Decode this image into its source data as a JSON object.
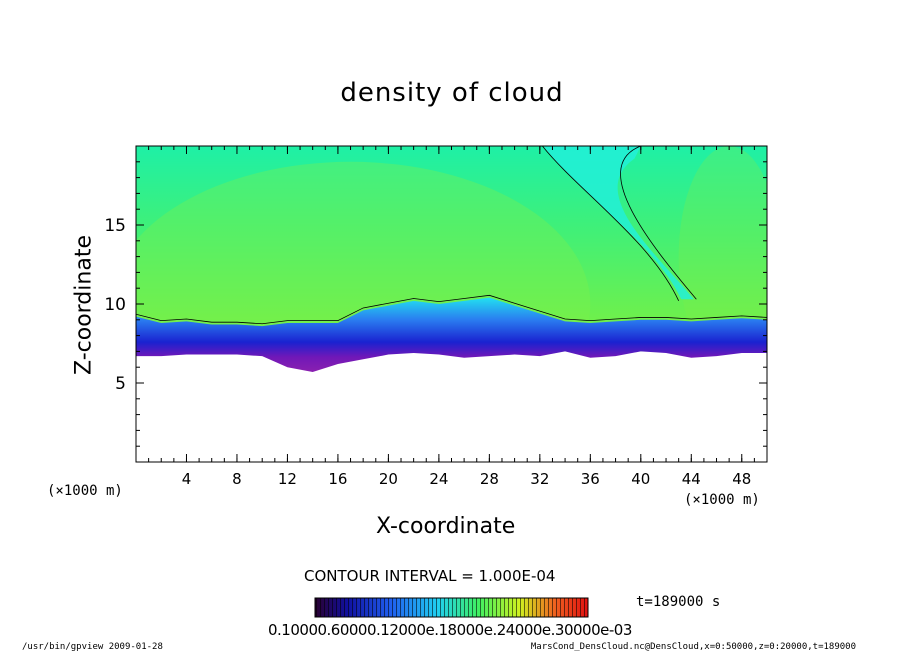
{
  "chart_data": {
    "type": "heatmap",
    "title": "density of cloud",
    "xlabel": "X-coordinate",
    "ylabel": "Z-coordinate",
    "x_unit_label": "(×1000 m)",
    "x_ticks": [
      4,
      8,
      12,
      16,
      20,
      24,
      28,
      32,
      36,
      40,
      44,
      48
    ],
    "y_ticks": [
      5,
      10,
      15
    ],
    "xlim": [
      0,
      50
    ],
    "ylim": [
      0,
      20
    ],
    "contour_interval": "CONTOUR INTERVAL = 1.000E-04",
    "time": "t=189000 s",
    "colorbar_labels": "0.10000.60000.12000e.18000e.24000e.30000e-03",
    "cloud_top_profile": {
      "x": [
        0,
        2,
        4,
        6,
        8,
        10,
        12,
        14,
        16,
        18,
        20,
        22,
        24,
        26,
        28,
        30,
        32,
        34,
        36,
        38,
        40,
        42,
        44,
        46,
        48,
        50
      ],
      "z": [
        9.2,
        8.8,
        8.9,
        8.7,
        8.7,
        8.6,
        8.8,
        8.8,
        8.8,
        9.6,
        9.9,
        10.2,
        10.0,
        10.2,
        10.4,
        9.9,
        9.4,
        8.9,
        8.8,
        8.9,
        9.0,
        9.0,
        8.9,
        9.0,
        9.1,
        9.0
      ]
    },
    "cloud_base_profile": {
      "x": [
        0,
        2,
        4,
        6,
        8,
        10,
        12,
        14,
        16,
        18,
        20,
        22,
        24,
        26,
        28,
        30,
        32,
        34,
        36,
        38,
        40,
        42,
        44,
        46,
        48,
        50
      ],
      "z": [
        6.7,
        6.7,
        6.8,
        6.8,
        6.8,
        6.7,
        6.0,
        5.7,
        6.2,
        6.5,
        6.8,
        6.9,
        6.8,
        6.6,
        6.7,
        6.8,
        6.7,
        7.0,
        6.6,
        6.7,
        7.0,
        6.9,
        6.6,
        6.7,
        6.9,
        6.9
      ]
    },
    "colors": {
      "upper": "#2bf07a",
      "upper_light": "#7ef04a",
      "cyan": "#22f0d8",
      "blue": "#2a6cf0",
      "deep_blue": "#1a1ad8",
      "purple": "#7a1ab4",
      "white": "#ffffff"
    }
  },
  "footer": {
    "left": "/usr/bin/gpview  2009-01-28",
    "right": "MarsCond_DensCloud.nc@DensCloud,x=0:50000,z=0:20000,t=189000"
  }
}
